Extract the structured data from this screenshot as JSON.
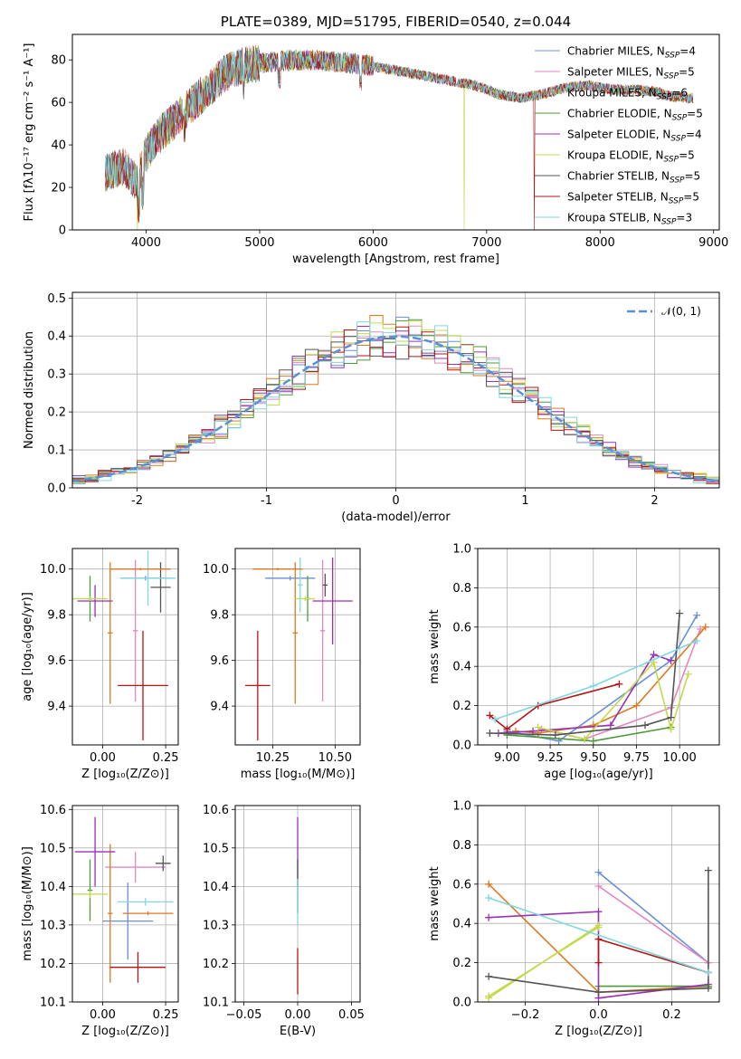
{
  "colors": {
    "chab_miles": "#6a8fdb",
    "salp_miles": "#e387c0",
    "krou_miles": "#dd7a22",
    "chab_elod": "#4e9a3a",
    "salp_elod": "#9b30b5",
    "krou_elod": "#c4d94c",
    "chab_stel": "#555555",
    "salp_stel": "#b51515",
    "krou_stel": "#80d8e0",
    "gauss": "#5b8fd6"
  },
  "chart_data": [
    {
      "id": "spectrum",
      "type": "line",
      "title": "PLATE=0389, MJD=51795, FIBERID=0540, z=0.044",
      "xlabel": "wavelength [Angstrom, rest frame]",
      "ylabel": "Flux [fλ10⁻¹⁷ erg cm⁻² s⁻¹ A⁻¹]",
      "xlim": [
        3350,
        9050
      ],
      "ylim": [
        0,
        92
      ],
      "xticks": [
        4000,
        5000,
        6000,
        7000,
        8000,
        9000
      ],
      "yticks": [
        0,
        20,
        40,
        60,
        80
      ],
      "legend_position": "top-right",
      "series": [
        {
          "key": "chab_miles",
          "name": "Chabrier MILES, N",
          "sub": "SSP",
          "suffix": "=4"
        },
        {
          "key": "salp_miles",
          "name": "Salpeter MILES, N",
          "sub": "SSP",
          "suffix": "=5"
        },
        {
          "key": "krou_miles",
          "name": "Kroupa MILES, N",
          "sub": "SSP",
          "suffix": "=6"
        },
        {
          "key": "chab_elod",
          "name": "Chabrier ELODIE, N",
          "sub": "SSP",
          "suffix": "=5"
        },
        {
          "key": "salp_elod",
          "name": "Salpeter ELODIE, N",
          "sub": "SSP",
          "suffix": "=4"
        },
        {
          "key": "krou_elod",
          "name": "Kroupa ELODIE, N",
          "sub": "SSP",
          "suffix": "=5"
        },
        {
          "key": "chab_stel",
          "name": "Chabrier STELIB, N",
          "sub": "SSP",
          "suffix": "=5"
        },
        {
          "key": "salp_stel",
          "name": "Salpeter STELIB, N",
          "sub": "SSP",
          "suffix": "=5"
        },
        {
          "key": "krou_stel",
          "name": "Kroupa STELIB, N",
          "sub": "SSP",
          "suffix": "=3"
        }
      ],
      "continuum": [
        [
          3640,
          27
        ],
        [
          3800,
          30
        ],
        [
          3920,
          22
        ],
        [
          3980,
          34
        ],
        [
          4100,
          44
        ],
        [
          4300,
          54
        ],
        [
          4500,
          64
        ],
        [
          4700,
          74
        ],
        [
          4900,
          78
        ],
        [
          5100,
          79
        ],
        [
          5300,
          80
        ],
        [
          5500,
          80
        ],
        [
          5700,
          79
        ],
        [
          5900,
          78
        ],
        [
          6100,
          76
        ],
        [
          6300,
          74
        ],
        [
          6500,
          72
        ],
        [
          6700,
          70
        ],
        [
          6900,
          68
        ],
        [
          7100,
          64
        ],
        [
          7300,
          62
        ],
        [
          7500,
          64
        ],
        [
          7700,
          67
        ],
        [
          7900,
          68
        ],
        [
          8100,
          66
        ],
        [
          8300,
          66
        ],
        [
          8500,
          65
        ],
        [
          8600,
          63
        ],
        [
          8800,
          62
        ]
      ],
      "wavelength_range": [
        3640,
        8820
      ],
      "drop_to_zero": [
        {
          "key": "krou_elod",
          "x": 3920
        },
        {
          "key": "krou_elod",
          "x": 6800
        },
        {
          "key": "salp_stel",
          "x": 7420
        }
      ]
    },
    {
      "id": "residuals",
      "type": "histogram",
      "xlabel": "(data-model)/error",
      "ylabel": "Normed distribution",
      "xlim": [
        -2.5,
        2.5
      ],
      "ylim": [
        0,
        0.515
      ],
      "xticks": [
        -2,
        -1,
        0,
        1,
        2
      ],
      "yticks": [
        0.0,
        0.1,
        0.2,
        0.3,
        0.4,
        0.5
      ],
      "grid": true,
      "legend_position": "top-right",
      "legend_label": "𝒩(0, 1)",
      "bin_width": 0.1,
      "gaussian": {
        "mean": 0,
        "sigma": 1
      }
    },
    {
      "id": "age_vs_Z",
      "type": "errorbar",
      "xlabel": "Z [log₁₀(Z/Z⊙)]",
      "ylabel": "age  [log₁₀(age/yr)]",
      "xlim": [
        -0.12,
        0.3
      ],
      "ylim": [
        9.23,
        10.09
      ],
      "xticks": [
        0.0,
        0.25
      ],
      "xticklabels": [
        "0.00",
        "0.25"
      ],
      "yticks": [
        9.4,
        9.6,
        9.8,
        10.0
      ],
      "grid": true,
      "points": [
        {
          "key": "chab_miles",
          "x": 0.17,
          "xerr": 0.1,
          "y": 9.96,
          "yerr": 0.01
        },
        {
          "key": "salp_miles",
          "x": 0.13,
          "xerr": 0.01,
          "y": 9.73,
          "yerr": 0.31
        },
        {
          "key": "krou_miles",
          "x": 0.03,
          "xerr": 0.01,
          "y": 9.72,
          "yerr": 0.31
        },
        {
          "key": "chab_elod",
          "x": -0.05,
          "xerr": 0.01,
          "y": 9.87,
          "yerr": 0.1
        },
        {
          "key": "salp_elod",
          "x": -0.03,
          "xerr": 0.07,
          "y": 9.86,
          "yerr": 0.07
        },
        {
          "key": "krou_elod",
          "x": -0.05,
          "xerr": 0.07,
          "y": 9.87,
          "yerr": 0.01
        },
        {
          "key": "chab_stel",
          "x": 0.23,
          "xerr": 0.04,
          "y": 9.92,
          "yerr": 0.11
        },
        {
          "key": "salp_stel",
          "x": 0.16,
          "xerr": 0.1,
          "y": 9.49,
          "yerr": 0.24
        },
        {
          "key": "krou_stel",
          "x": 0.18,
          "xerr": 0.11,
          "y": 9.96,
          "yerr": 0.12
        },
        {
          "key": "krou_miles",
          "x": 0.15,
          "xerr": 0.12,
          "y": 10.0,
          "yerr": 0.005
        }
      ]
    },
    {
      "id": "age_vs_mass",
      "type": "errorbar",
      "xlabel": "mass [log₁₀(M/M⊙)]",
      "ylabel": "",
      "xlim": [
        10.1,
        10.6
      ],
      "ylim": [
        9.23,
        10.09
      ],
      "xticks": [
        10.25,
        10.5
      ],
      "xticklabels": [
        "10.25",
        "10.50"
      ],
      "yticks": [
        9.4,
        9.6,
        9.8,
        10.0
      ],
      "grid": true,
      "points": [
        {
          "key": "chab_miles",
          "x": 10.32,
          "xerr": 0.1,
          "y": 9.96,
          "yerr": 0.01
        },
        {
          "key": "salp_miles",
          "x": 10.45,
          "xerr": 0.01,
          "y": 9.73,
          "yerr": 0.31
        },
        {
          "key": "krou_miles",
          "x": 10.34,
          "xerr": 0.01,
          "y": 9.72,
          "yerr": 0.31
        },
        {
          "key": "chab_elod",
          "x": 10.39,
          "xerr": 0.01,
          "y": 9.87,
          "yerr": 0.1
        },
        {
          "key": "salp_elod",
          "x": 10.49,
          "xerr": 0.08,
          "y": 9.86,
          "yerr": 0.19
        },
        {
          "key": "krou_elod",
          "x": 10.38,
          "xerr": 0.04,
          "y": 9.87,
          "yerr": 0.01
        },
        {
          "key": "chab_stel",
          "x": 10.46,
          "xerr": 0.01,
          "y": 9.93,
          "yerr": 0.05
        },
        {
          "key": "salp_stel",
          "x": 10.19,
          "xerr": 0.05,
          "y": 9.49,
          "yerr": 0.24
        },
        {
          "key": "krou_stel",
          "x": 10.36,
          "xerr": 0.01,
          "y": 9.93,
          "yerr": 0.12
        },
        {
          "key": "krou_miles",
          "x": 10.27,
          "xerr": 0.1,
          "y": 10.0,
          "yerr": 0.005
        }
      ]
    },
    {
      "id": "weight_vs_age",
      "type": "line",
      "xlabel": "age  [log₁₀(age/yr)]",
      "ylabel": "mass weight",
      "xlim": [
        8.83,
        10.23
      ],
      "ylim": [
        0,
        1.0
      ],
      "xticks": [
        9.0,
        9.25,
        9.5,
        9.75,
        10.0
      ],
      "xticklabels": [
        "9.00",
        "9.25",
        "9.50",
        "9.75",
        "10.00"
      ],
      "yticks": [
        0.0,
        0.2,
        0.4,
        0.6,
        0.8,
        1.0
      ],
      "grid": true,
      "series": [
        {
          "key": "chab_miles",
          "x": [
            9.0,
            9.3,
            9.95,
            10.1
          ],
          "y": [
            0.07,
            0.02,
            0.43,
            0.66
          ]
        },
        {
          "key": "salp_miles",
          "x": [
            9.2,
            9.45,
            9.95,
            10.12
          ],
          "y": [
            0.08,
            0.03,
            0.19,
            0.59
          ]
        },
        {
          "key": "krou_miles",
          "x": [
            9.05,
            9.18,
            9.5,
            9.75,
            10.15
          ],
          "y": [
            0.07,
            0.06,
            0.1,
            0.2,
            0.6
          ]
        },
        {
          "key": "chab_elod",
          "x": [
            9.0,
            9.5,
            9.95
          ],
          "y": [
            0.05,
            0.02,
            0.09
          ]
        },
        {
          "key": "salp_elod",
          "x": [
            8.95,
            9.15,
            9.6,
            9.85,
            9.95
          ],
          "y": [
            0.06,
            0.07,
            0.1,
            0.46,
            0.43
          ]
        },
        {
          "key": "krou_elod",
          "x": [
            9.18,
            9.45,
            9.85,
            9.95,
            10.05
          ],
          "y": [
            0.09,
            0.03,
            0.42,
            0.08,
            0.36
          ]
        },
        {
          "key": "chab_stel",
          "x": [
            8.9,
            9.28,
            9.8,
            9.95,
            10.0
          ],
          "y": [
            0.06,
            0.05,
            0.1,
            0.14,
            0.67
          ]
        },
        {
          "key": "salp_stel",
          "x": [
            8.9,
            9.0,
            9.18,
            9.65
          ],
          "y": [
            0.15,
            0.08,
            0.2,
            0.31
          ]
        },
        {
          "key": "krou_stel",
          "x": [
            8.93,
            9.5,
            10.1
          ],
          "y": [
            0.13,
            0.3,
            0.53
          ]
        }
      ]
    },
    {
      "id": "mass_vs_Z",
      "type": "errorbar",
      "xlabel": "Z [log₁₀(Z/Z⊙)]",
      "ylabel": "mass [log₁₀(M/M⊙)]",
      "xlim": [
        -0.12,
        0.3
      ],
      "ylim": [
        10.1,
        10.61
      ],
      "xticks": [
        0.0,
        0.25
      ],
      "xticklabels": [
        "0.00",
        "0.25"
      ],
      "yticks": [
        10.1,
        10.2,
        10.3,
        10.4,
        10.5,
        10.6
      ],
      "grid": true,
      "points": [
        {
          "key": "chab_miles",
          "x": 0.1,
          "xerr": 0.1,
          "y": 10.31,
          "yerr": 0.1
        },
        {
          "key": "salp_miles",
          "x": 0.13,
          "xerr": 0.12,
          "y": 10.45,
          "yerr": 0.04
        },
        {
          "key": "krou_miles",
          "x": 0.03,
          "xerr": 0.01,
          "y": 10.33,
          "yerr": 0.18
        },
        {
          "key": "chab_elod",
          "x": -0.05,
          "xerr": 0.01,
          "y": 10.39,
          "yerr": 0.08
        },
        {
          "key": "salp_elod",
          "x": -0.03,
          "xerr": 0.08,
          "y": 10.49,
          "yerr": 0.09
        },
        {
          "key": "krou_elod",
          "x": -0.05,
          "xerr": 0.07,
          "y": 10.38,
          "yerr": 0.01
        },
        {
          "key": "chab_stel",
          "x": 0.24,
          "xerr": 0.03,
          "y": 10.46,
          "yerr": 0.02
        },
        {
          "key": "salp_stel",
          "x": 0.14,
          "xerr": 0.11,
          "y": 10.19,
          "yerr": 0.04
        },
        {
          "key": "krou_stel",
          "x": 0.17,
          "xerr": 0.11,
          "y": 10.36,
          "yerr": 0.01
        },
        {
          "key": "krou_miles",
          "x": 0.18,
          "xerr": 0.1,
          "y": 10.33,
          "yerr": 0.005
        }
      ]
    },
    {
      "id": "mass_vs_ebv",
      "type": "errorbar",
      "xlabel": "E(B-V)",
      "ylabel": "",
      "xlim": [
        -0.058,
        0.058
      ],
      "ylim": [
        10.1,
        10.61
      ],
      "xticks": [
        -0.05,
        0.0,
        0.05
      ],
      "xticklabels": [
        "−0.05",
        "0.00",
        "0.05"
      ],
      "yticks": [
        10.1,
        10.2,
        10.3,
        10.4,
        10.5,
        10.6
      ],
      "grid": true,
      "points": [
        {
          "key": "salp_elod",
          "x": 0.0,
          "xerr": 0,
          "y": 10.49,
          "yerr": 0.09
        },
        {
          "key": "chab_stel",
          "x": 0.0,
          "xerr": 0,
          "y": 10.4,
          "yerr": 0.07
        },
        {
          "key": "krou_stel",
          "x": 0.0,
          "xerr": 0,
          "y": 10.36,
          "yerr": 0.06
        },
        {
          "key": "salp_stel",
          "x": 0.0,
          "xerr": 0,
          "y": 10.18,
          "yerr": 0.06
        }
      ]
    },
    {
      "id": "weight_vs_Z",
      "type": "line",
      "xlabel": "Z [log₁₀(Z/Z⊙)]",
      "ylabel": "mass weight",
      "xlim": [
        -0.33,
        0.33
      ],
      "ylim": [
        0,
        1.0
      ],
      "xticks": [
        -0.2,
        0.0,
        0.2
      ],
      "xticklabels": [
        "−0.2",
        "0.0",
        "0.2"
      ],
      "yticks": [
        0.0,
        0.2,
        0.4,
        0.6,
        0.8,
        1.0
      ],
      "grid": true,
      "series": [
        {
          "key": "chab_miles",
          "x": [
            0.0,
            0.3
          ],
          "y": [
            0.66,
            0.2
          ]
        },
        {
          "key": "salp_miles",
          "x": [
            0.0,
            0.3
          ],
          "y": [
            0.59,
            0.2
          ]
        },
        {
          "key": "krou_miles",
          "x": [
            -0.3,
            0.0,
            0.3
          ],
          "y": [
            0.6,
            0.05,
            0.08
          ]
        },
        {
          "key": "chab_elod",
          "x": [
            0.0,
            0.3
          ],
          "y": [
            0.08,
            0.08
          ]
        },
        {
          "key": "salp_elod",
          "x": [
            -0.3,
            0.0,
            0.0,
            0.3
          ],
          "y": [
            0.43,
            0.46,
            0.02,
            0.09
          ]
        },
        {
          "key": "krou_elod",
          "x": [
            -0.3,
            0.0,
            0.0,
            -0.3
          ],
          "y": [
            0.02,
            0.39,
            0.38,
            0.03
          ]
        },
        {
          "key": "chab_stel",
          "x": [
            -0.3,
            0.0,
            0.3,
            0.3
          ],
          "y": [
            0.13,
            0.05,
            0.07,
            0.67
          ]
        },
        {
          "key": "salp_stel",
          "x": [
            0.0,
            0.0,
            0.3
          ],
          "y": [
            0.2,
            0.32,
            0.15
          ]
        },
        {
          "key": "krou_stel",
          "x": [
            -0.3,
            0.3
          ],
          "y": [
            0.53,
            0.15
          ]
        }
      ]
    }
  ]
}
